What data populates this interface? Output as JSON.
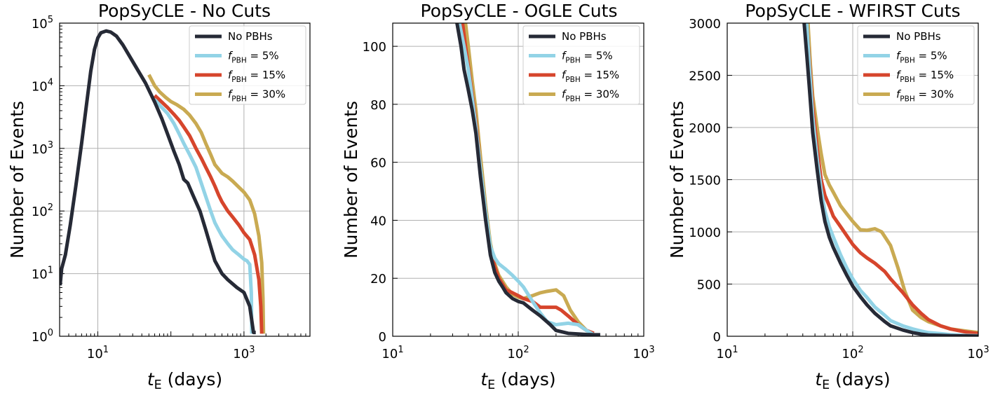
{
  "colors": {
    "no_pbh": "#262a36",
    "pbh5": "#92d3e6",
    "pbh15": "#d6452c",
    "pbh30": "#c9aa52"
  },
  "chart_data": [
    {
      "type": "line",
      "title": "PopSyCLE - No Cuts",
      "xlabel": "t_E (days)",
      "ylabel": "Number of Events",
      "xscale": "log",
      "yscale": "log",
      "xlim": [
        3,
        8000
      ],
      "ylim": [
        1,
        100000
      ],
      "xticks": [
        {
          "value": 10,
          "label": "10^1"
        },
        {
          "value": 1000,
          "label": "10^3"
        }
      ],
      "yticks": [
        {
          "value": 1,
          "label": "10^0"
        },
        {
          "value": 10,
          "label": "10^1"
        },
        {
          "value": 100,
          "label": "10^2"
        },
        {
          "value": 1000,
          "label": "10^3"
        },
        {
          "value": 10000,
          "label": "10^4"
        },
        {
          "value": 100000,
          "label": "10^5"
        }
      ],
      "grid": true,
      "legend": "top-right",
      "series": [
        {
          "name": "No PBHs",
          "color_key": "no_pbh",
          "x": [
            3.05,
            3.2,
            3.6,
            4.2,
            5,
            6,
            7,
            8,
            9,
            10,
            11,
            13,
            15,
            18,
            22,
            28,
            35,
            45,
            60,
            75,
            90,
            110,
            130,
            150,
            170,
            200,
            250,
            300,
            400,
            500,
            600,
            800,
            1000,
            1200,
            1350,
            1450
          ],
          "y": [
            6.5,
            12,
            20,
            60,
            250,
            1200,
            5000,
            17000,
            38000,
            58000,
            70000,
            75000,
            72000,
            62000,
            45000,
            28000,
            18000,
            11000,
            5500,
            3000,
            1700,
            900,
            550,
            320,
            280,
            180,
            100,
            50,
            16,
            10,
            8,
            6,
            5,
            3,
            1.15,
            1.15
          ]
        },
        {
          "name": "f_PBH = 5%",
          "color_key": "pbh5",
          "x": [
            60,
            75,
            90,
            110,
            130,
            150,
            180,
            220,
            260,
            300,
            350,
            400,
            450,
            500,
            600,
            700,
            850,
            1000,
            1100,
            1200,
            1260,
            1280
          ],
          "y": [
            6000,
            4500,
            3600,
            2500,
            1700,
            1200,
            800,
            500,
            280,
            170,
            100,
            65,
            50,
            40,
            30,
            24,
            20,
            17,
            16,
            14,
            5,
            1.1
          ]
        },
        {
          "name": "f_PBH = 15%",
          "color_key": "pbh15",
          "x": [
            60,
            75,
            90,
            110,
            130,
            150,
            180,
            220,
            260,
            300,
            350,
            400,
            450,
            500,
            600,
            700,
            850,
            1000,
            1200,
            1400,
            1600,
            1700,
            1750
          ],
          "y": [
            7000,
            5500,
            4500,
            3500,
            2800,
            2200,
            1600,
            1000,
            700,
            500,
            350,
            250,
            180,
            140,
            100,
            80,
            60,
            45,
            35,
            20,
            8,
            3,
            1.1
          ]
        },
        {
          "name": "f_PBH = 30%",
          "color_key": "pbh30",
          "x": [
            50,
            60,
            70,
            85,
            100,
            120,
            150,
            180,
            220,
            260,
            300,
            350,
            400,
            500,
            600,
            700,
            850,
            1000,
            1200,
            1400,
            1600,
            1750,
            1820,
            1850
          ],
          "y": [
            15000,
            10000,
            8000,
            6500,
            5600,
            5000,
            4200,
            3400,
            2500,
            1800,
            1200,
            800,
            550,
            400,
            350,
            300,
            240,
            200,
            150,
            90,
            40,
            15,
            4,
            1.1
          ]
        }
      ]
    },
    {
      "type": "line",
      "title": "PopSyCLE - OGLE Cuts",
      "xlabel": "t_E (days)",
      "ylabel": "Number of Events",
      "xscale": "log",
      "yscale": "linear",
      "xlim": [
        10,
        1000
      ],
      "ylim": [
        0,
        108
      ],
      "xticks": [
        {
          "value": 10,
          "label": "10^1"
        },
        {
          "value": 100,
          "label": "10^2"
        },
        {
          "value": 1000,
          "label": "10^3"
        }
      ],
      "yticks": [
        {
          "value": 0,
          "label": "0"
        },
        {
          "value": 20,
          "label": "20"
        },
        {
          "value": 40,
          "label": "40"
        },
        {
          "value": 60,
          "label": "60"
        },
        {
          "value": 80,
          "label": "80"
        },
        {
          "value": 100,
          "label": "100"
        }
      ],
      "grid": true,
      "legend": "top-right",
      "series": [
        {
          "name": "No PBHs",
          "color_key": "no_pbh",
          "x": [
            32.5,
            35,
            37,
            40,
            43,
            46,
            50,
            55,
            60,
            65,
            70,
            75,
            80,
            90,
            100,
            110,
            130,
            150,
            180,
            200,
            250,
            300,
            350,
            400,
            450
          ],
          "y": [
            108,
            100,
            92,
            85,
            78,
            70,
            55,
            40,
            28,
            22,
            19,
            17,
            15,
            13,
            12,
            11.5,
            9,
            7,
            4,
            2,
            1,
            0.8,
            0.6,
            0.5,
            0.5
          ]
        },
        {
          "name": "f_PBH = 5%",
          "color_key": "pbh5",
          "x": [
            34,
            37,
            40,
            43,
            46,
            50,
            55,
            60,
            65,
            70,
            80,
            90,
            100,
            110,
            130,
            150,
            170,
            200,
            250,
            300,
            350,
            400
          ],
          "y": [
            108,
            100,
            92,
            82,
            72,
            58,
            43,
            31,
            27,
            25,
            23,
            21,
            19,
            17,
            12,
            8,
            5,
            4,
            4.5,
            4,
            2,
            0.5
          ]
        },
        {
          "name": "f_PBH = 15%",
          "color_key": "pbh15",
          "x": [
            36,
            38,
            41,
            44,
            47,
            50,
            55,
            60,
            65,
            70,
            80,
            90,
            100,
            110,
            130,
            150,
            170,
            200,
            220,
            250,
            300,
            350,
            400
          ],
          "y": [
            108,
            100,
            90,
            80,
            70,
            58,
            43,
            30,
            24,
            20,
            16,
            15,
            14,
            13,
            12,
            10,
            10,
            10,
            9,
            7,
            4,
            2,
            1
          ]
        },
        {
          "name": "f_PBH = 30%",
          "color_key": "pbh30",
          "x": [
            38,
            40,
            43,
            46,
            50,
            55,
            60,
            65,
            70,
            80,
            90,
            100,
            110,
            130,
            150,
            170,
            200,
            230,
            260,
            300,
            350,
            400
          ],
          "y": [
            108,
            100,
            88,
            78,
            62,
            45,
            32,
            25,
            21,
            17,
            14.5,
            13.5,
            13,
            14,
            15,
            15.5,
            16,
            14,
            9,
            5,
            2,
            0.5
          ]
        }
      ]
    },
    {
      "type": "line",
      "title": "PopSyCLE - WFIRST Cuts",
      "xlabel": "t_E (days)",
      "ylabel": "Number of Events",
      "xscale": "log",
      "yscale": "linear",
      "xlim": [
        10,
        1000
      ],
      "ylim": [
        0,
        3000
      ],
      "xticks": [
        {
          "value": 10,
          "label": "10^1"
        },
        {
          "value": 100,
          "label": "10^2"
        },
        {
          "value": 1000,
          "label": "10^3"
        }
      ],
      "yticks": [
        {
          "value": 0,
          "label": "0"
        },
        {
          "value": 500,
          "label": "500"
        },
        {
          "value": 1000,
          "label": "1000"
        },
        {
          "value": 1500,
          "label": "1500"
        },
        {
          "value": 2000,
          "label": "2000"
        },
        {
          "value": 2500,
          "label": "2500"
        },
        {
          "value": 3000,
          "label": "3000"
        }
      ],
      "grid": true,
      "legend": "top-right",
      "series": [
        {
          "name": "No PBHs",
          "color_key": "no_pbh",
          "x": [
            41,
            43,
            45,
            48,
            52,
            56,
            60,
            65,
            70,
            80,
            90,
            100,
            115,
            130,
            150,
            180,
            200,
            250,
            300,
            350,
            400,
            500,
            600,
            800,
            1000
          ],
          "y": [
            3000,
            2700,
            2400,
            1950,
            1600,
            1300,
            1100,
            950,
            850,
            700,
            580,
            480,
            380,
            300,
            220,
            140,
            100,
            60,
            35,
            20,
            12,
            8,
            5,
            3,
            2
          ]
        },
        {
          "name": "f_PBH = 5%",
          "color_key": "pbh5",
          "x": [
            43,
            45,
            48,
            52,
            56,
            60,
            65,
            70,
            80,
            90,
            100,
            115,
            130,
            150,
            180,
            200,
            250,
            300,
            350,
            400,
            500,
            600,
            800,
            1000
          ],
          "y": [
            3000,
            2600,
            2100,
            1700,
            1400,
            1200,
            1050,
            950,
            780,
            650,
            550,
            440,
            370,
            280,
            200,
            150,
            100,
            70,
            50,
            35,
            25,
            15,
            8,
            5
          ]
        },
        {
          "name": "f_PBH = 15%",
          "color_key": "pbh15",
          "x": [
            43,
            45,
            48,
            52,
            56,
            60,
            65,
            70,
            80,
            90,
            100,
            115,
            130,
            150,
            180,
            200,
            250,
            300,
            350,
            400,
            500,
            600,
            800,
            1000
          ],
          "y": [
            3000,
            2650,
            2200,
            1800,
            1500,
            1350,
            1250,
            1150,
            1050,
            960,
            880,
            800,
            750,
            700,
            620,
            550,
            420,
            300,
            220,
            160,
            100,
            70,
            40,
            25
          ]
        },
        {
          "name": "f_PBH = 30%",
          "color_key": "pbh30",
          "x": [
            44,
            46,
            48,
            52,
            56,
            60,
            65,
            70,
            80,
            90,
            100,
            115,
            130,
            150,
            170,
            200,
            230,
            260,
            300,
            350,
            400,
            500,
            600,
            800,
            1000
          ],
          "y": [
            3000,
            2600,
            2300,
            2000,
            1750,
            1550,
            1450,
            1380,
            1250,
            1170,
            1100,
            1020,
            1015,
            1030,
            1000,
            870,
            650,
            430,
            250,
            180,
            140,
            100,
            70,
            50,
            35
          ]
        }
      ]
    }
  ]
}
